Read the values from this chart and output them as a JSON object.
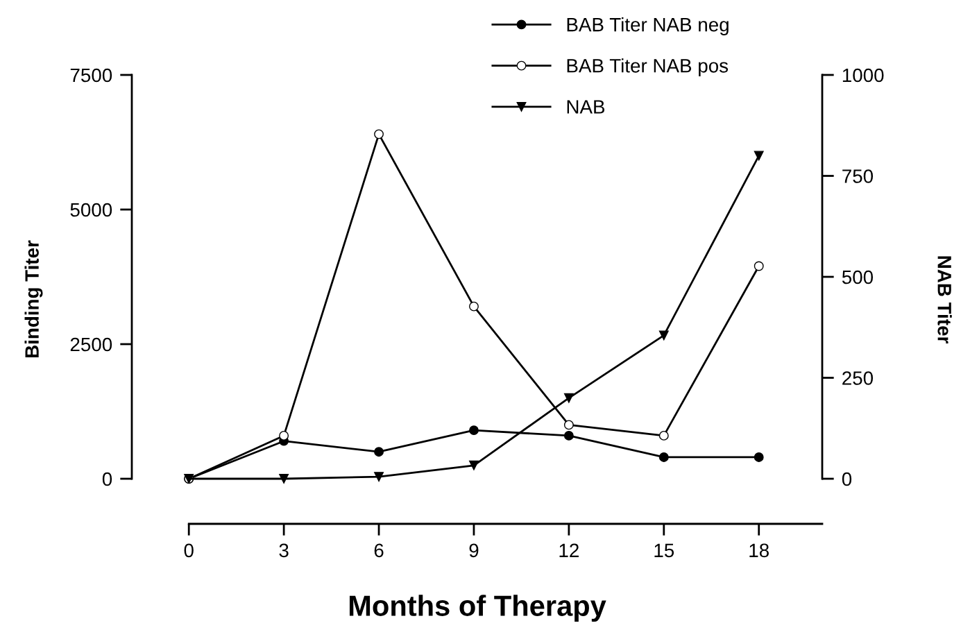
{
  "chart_data": {
    "type": "line",
    "xlabel": "Months of Therapy",
    "ylabel": "Binding Titer",
    "y2label": "NAB Titer",
    "x": [
      0,
      3,
      6,
      9,
      12,
      15,
      18
    ],
    "series": [
      {
        "name": "BAB Titer NAB neg",
        "color": "#000000",
        "marker": "circle",
        "values": [
          0,
          700,
          500,
          900,
          800,
          400,
          400
        ]
      },
      {
        "name": "BAB Titer NAB pos",
        "color": "#000000",
        "marker": "circle",
        "values": [
          0,
          800,
          6400,
          3200,
          1000,
          800,
          3950
        ]
      },
      {
        "name": "NAB",
        "color": "#000000",
        "marker": "triangle",
        "axis": "y2",
        "values": [
          0,
          0,
          5,
          33,
          200,
          355,
          800
        ]
      }
    ],
    "xlim": [
      0,
      20
    ],
    "xticks": [
      0,
      3,
      6,
      9,
      12,
      15,
      18
    ],
    "ylim": [
      0,
      7500
    ],
    "yticks": [
      0,
      2500,
      5000,
      7500
    ],
    "y2lim": [
      0,
      1000
    ],
    "y2ticks": [
      0,
      250,
      500,
      750,
      1000
    ],
    "grid": false,
    "legend": "top",
    "line_style": "solid"
  }
}
